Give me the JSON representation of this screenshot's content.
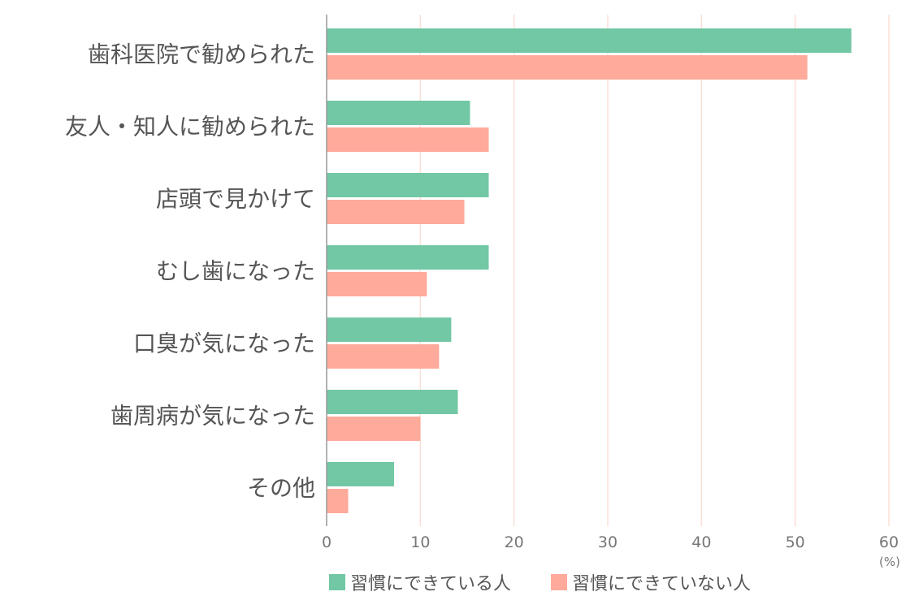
{
  "chart_data": {
    "type": "bar",
    "orientation": "horizontal",
    "categories": [
      "歯科医院で勧められた",
      "友人・知人に勧められた",
      "店頭で見かけて",
      "むし歯になった",
      "口臭が気になった",
      "歯周病が気になった",
      "その他"
    ],
    "series": [
      {
        "name": "習慣にできている人",
        "color": "#72c8a4",
        "values": [
          56.0,
          15.3,
          17.3,
          17.3,
          13.3,
          14.0,
          7.2
        ]
      },
      {
        "name": "習慣にできていない人",
        "color": "#ffaa9a",
        "values": [
          51.3,
          17.3,
          14.7,
          10.7,
          12.0,
          10.0,
          2.3
        ]
      }
    ],
    "xlim": [
      0,
      60
    ],
    "ticks": [
      "0",
      "10",
      "20",
      "30",
      "40",
      "50",
      "60"
    ],
    "unit": "(%)",
    "grid": true,
    "grid_color": "#fbe0d6",
    "legend_position": "bottom"
  }
}
